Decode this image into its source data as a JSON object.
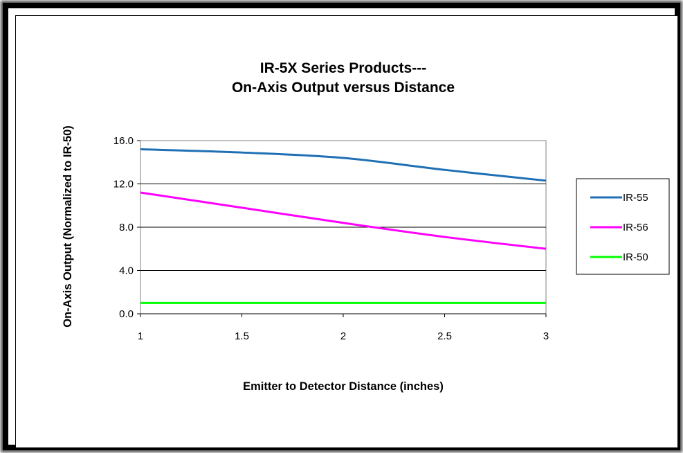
{
  "chart_data": {
    "type": "line",
    "title_lines": [
      "IR-5X Series Products---",
      "On-Axis Output versus Distance"
    ],
    "xlabel": "Emitter to Detector  Distance  (inches)",
    "ylabel": "On-Axis  Output (Normalized to IR-50)",
    "x_ticks": [
      "1",
      "1.5",
      "2",
      "2.5",
      "3"
    ],
    "y_ticks": [
      "0.0",
      "4.0",
      "8.0",
      "12.0",
      "16.0"
    ],
    "xlim": [
      1,
      3
    ],
    "ylim": [
      0,
      16
    ],
    "grid": "horizontal",
    "legend_position": "right",
    "series": [
      {
        "name": "IR-55",
        "color": "#1f6fb5",
        "x": [
          1,
          1.5,
          2,
          2.5,
          3
        ],
        "y": [
          15.2,
          14.9,
          14.4,
          13.3,
          12.3
        ]
      },
      {
        "name": "IR-56",
        "color": "#ff00ff",
        "x": [
          1,
          1.5,
          2,
          2.5,
          3
        ],
        "y": [
          11.2,
          9.8,
          8.4,
          7.1,
          6.0
        ]
      },
      {
        "name": "IR-50",
        "color": "#00ff00",
        "x": [
          1,
          1.5,
          2,
          2.5,
          3
        ],
        "y": [
          1.0,
          1.0,
          1.0,
          1.0,
          1.0
        ]
      }
    ]
  }
}
